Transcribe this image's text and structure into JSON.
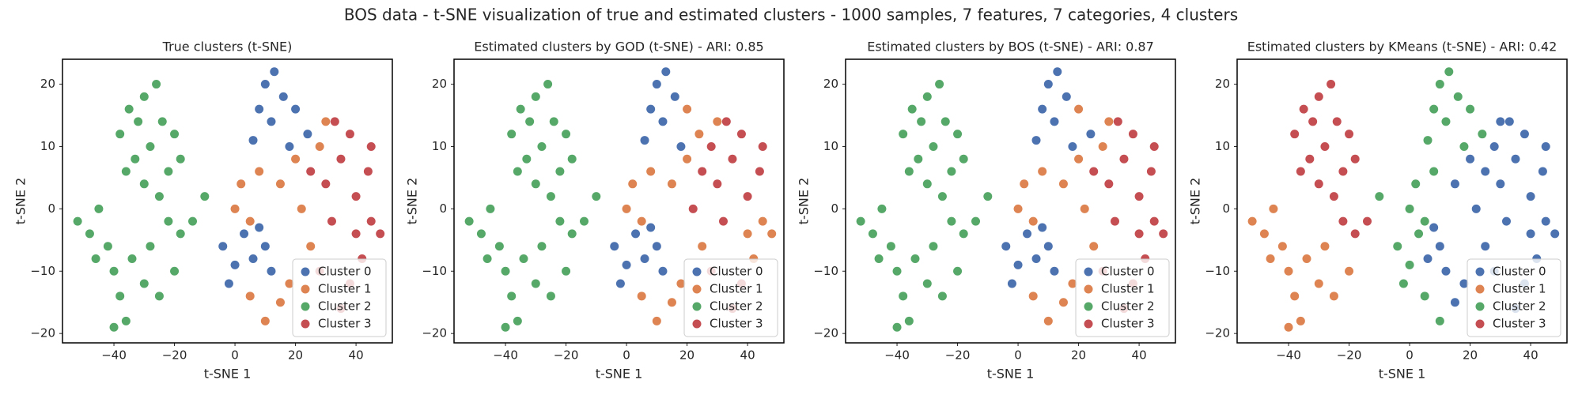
{
  "title": "BOS data - t-SNE visualization of true and estimated clusters - 1000 samples, 7 features, 7 categories, 4 clusters",
  "chart_data": [
    {
      "type": "scatter",
      "title": "True clusters (t-SNE)",
      "xlabel": "t-SNE 1",
      "ylabel": "t-SNE 2",
      "xlim": [
        -57,
        52
      ],
      "ylim": [
        -21.5,
        24
      ],
      "xticks": [
        {
          "value": -40,
          "label": "−40"
        },
        {
          "value": -20,
          "label": "−20"
        },
        0,
        20,
        40
      ],
      "yticks": [
        {
          "value": -20,
          "label": "−20"
        },
        {
          "value": -10,
          "label": "−10"
        },
        0,
        10,
        20
      ],
      "legend": "lower right",
      "series": [
        {
          "name": "Cluster 0",
          "color": "#4c72b0",
          "x": [
            10,
            13,
            16,
            8,
            20,
            12,
            24,
            18,
            6,
            -4,
            0,
            3,
            6,
            10,
            -2,
            12,
            8
          ],
          "y": [
            20,
            22,
            18,
            16,
            16,
            14,
            12,
            10,
            11,
            -6,
            -9,
            -4,
            -8,
            -6,
            -12,
            -10,
            -3
          ]
        },
        {
          "name": "Cluster 1",
          "color": "#dd8452",
          "x": [
            2,
            5,
            8,
            15,
            20,
            22,
            28,
            25,
            15,
            10,
            5,
            18,
            30,
            0
          ],
          "y": [
            4,
            -2,
            6,
            4,
            8,
            0,
            10,
            -6,
            -15,
            -18,
            -14,
            -12,
            14,
            0
          ]
        },
        {
          "name": "Cluster 2",
          "color": "#55a868",
          "x": [
            -38,
            -35,
            -30,
            -26,
            -24,
            -28,
            -33,
            -20,
            -22,
            -30,
            -36,
            -25,
            -18,
            -32,
            -52,
            -48,
            -45,
            -42,
            -40,
            -38,
            -36,
            -40,
            -34,
            -30,
            -28,
            -25,
            -20,
            -18,
            -14,
            -10,
            -22,
            -46
          ],
          "y": [
            12,
            16,
            18,
            20,
            14,
            10,
            8,
            12,
            6,
            4,
            6,
            2,
            8,
            14,
            -2,
            -4,
            0,
            -6,
            -10,
            -14,
            -18,
            -19,
            -8,
            -12,
            -6,
            -14,
            -10,
            -4,
            -2,
            2,
            -2,
            -8
          ]
        },
        {
          "name": "Cluster 3",
          "color": "#c44e52",
          "x": [
            30,
            35,
            40,
            45,
            48,
            42,
            38,
            32,
            28,
            35,
            44,
            38,
            25,
            33,
            45,
            40
          ],
          "y": [
            4,
            8,
            2,
            -2,
            -4,
            -8,
            -12,
            -2,
            -10,
            -16,
            6,
            12,
            6,
            14,
            10,
            -4
          ]
        }
      ]
    },
    {
      "type": "scatter",
      "title": "Estimated clusters by GOD (t-SNE) - ARI: 0.85",
      "xlabel": "t-SNE 1",
      "ylabel": "t-SNE 2",
      "xlim": [
        -57,
        52
      ],
      "ylim": [
        -21.5,
        24
      ],
      "xticks": [
        {
          "value": -40,
          "label": "−40"
        },
        {
          "value": -20,
          "label": "−20"
        },
        0,
        20,
        40
      ],
      "yticks": [
        {
          "value": -20,
          "label": "−20"
        },
        {
          "value": -10,
          "label": "−10"
        },
        0,
        10,
        20
      ],
      "legend": "lower right",
      "series": [
        {
          "name": "Cluster 0",
          "color": "#4c72b0",
          "x": [
            10,
            13,
            16,
            8,
            12,
            18,
            6,
            -4,
            0,
            3,
            6,
            10,
            -2,
            12,
            8
          ],
          "y": [
            20,
            22,
            18,
            16,
            14,
            10,
            11,
            -6,
            -9,
            -4,
            -8,
            -6,
            -12,
            -10,
            -3
          ]
        },
        {
          "name": "Cluster 1",
          "color": "#dd8452",
          "x": [
            2,
            5,
            8,
            15,
            20,
            25,
            15,
            10,
            5,
            18,
            30,
            0,
            20,
            24,
            40,
            45,
            48,
            42
          ],
          "y": [
            4,
            -2,
            6,
            4,
            8,
            -6,
            -15,
            -18,
            -14,
            -12,
            14,
            0,
            16,
            12,
            -4,
            -2,
            -4,
            -8
          ]
        },
        {
          "name": "Cluster 2",
          "color": "#55a868",
          "x": [
            -38,
            -35,
            -30,
            -26,
            -24,
            -28,
            -33,
            -20,
            -22,
            -30,
            -36,
            -25,
            -18,
            -32,
            -52,
            -48,
            -45,
            -42,
            -40,
            -38,
            -36,
            -40,
            -34,
            -30,
            -28,
            -25,
            -20,
            -18,
            -14,
            -10,
            -22,
            -46
          ],
          "y": [
            12,
            16,
            18,
            20,
            14,
            10,
            8,
            12,
            6,
            4,
            6,
            2,
            8,
            14,
            -2,
            -4,
            0,
            -6,
            -10,
            -14,
            -18,
            -19,
            -8,
            -12,
            -6,
            -14,
            -10,
            -4,
            -2,
            2,
            -2,
            -8
          ]
        },
        {
          "name": "Cluster 3",
          "color": "#c44e52",
          "x": [
            30,
            35,
            40,
            38,
            32,
            28,
            35,
            44,
            38,
            25,
            33,
            45,
            22,
            28
          ],
          "y": [
            4,
            8,
            2,
            -12,
            -2,
            -10,
            -16,
            6,
            12,
            6,
            14,
            10,
            0,
            10
          ]
        }
      ]
    },
    {
      "type": "scatter",
      "title": "Estimated clusters by BOS (t-SNE) - ARI: 0.87",
      "xlabel": "t-SNE 1",
      "ylabel": "t-SNE 2",
      "xlim": [
        -57,
        52
      ],
      "ylim": [
        -21.5,
        24
      ],
      "xticks": [
        {
          "value": -40,
          "label": "−40"
        },
        {
          "value": -20,
          "label": "−20"
        },
        0,
        20,
        40
      ],
      "yticks": [
        {
          "value": -20,
          "label": "−20"
        },
        {
          "value": -10,
          "label": "−10"
        },
        0,
        10,
        20
      ],
      "legend": "lower right",
      "series": [
        {
          "name": "Cluster 0",
          "color": "#4c72b0",
          "x": [
            10,
            13,
            16,
            8,
            12,
            24,
            18,
            6,
            -4,
            0,
            3,
            6,
            10,
            -2,
            12,
            8
          ],
          "y": [
            20,
            22,
            18,
            16,
            14,
            12,
            10,
            11,
            -6,
            -9,
            -4,
            -8,
            -6,
            -12,
            -10,
            -3
          ]
        },
        {
          "name": "Cluster 1",
          "color": "#dd8452",
          "x": [
            2,
            5,
            8,
            15,
            20,
            22,
            28,
            25,
            15,
            10,
            5,
            18,
            30,
            0,
            20
          ],
          "y": [
            4,
            -2,
            6,
            4,
            8,
            0,
            10,
            -6,
            -15,
            -18,
            -14,
            -12,
            14,
            0,
            16
          ]
        },
        {
          "name": "Cluster 2",
          "color": "#55a868",
          "x": [
            -38,
            -35,
            -30,
            -26,
            -24,
            -28,
            -33,
            -20,
            -22,
            -30,
            -36,
            -25,
            -18,
            -32,
            -52,
            -48,
            -45,
            -42,
            -40,
            -38,
            -36,
            -40,
            -34,
            -30,
            -28,
            -25,
            -20,
            -18,
            -14,
            -10,
            -22,
            -46
          ],
          "y": [
            12,
            16,
            18,
            20,
            14,
            10,
            8,
            12,
            6,
            4,
            6,
            2,
            8,
            14,
            -2,
            -4,
            0,
            -6,
            -10,
            -14,
            -18,
            -19,
            -8,
            -12,
            -6,
            -14,
            -10,
            -4,
            -2,
            2,
            -2,
            -8
          ]
        },
        {
          "name": "Cluster 3",
          "color": "#c44e52",
          "x": [
            30,
            35,
            40,
            45,
            48,
            42,
            38,
            32,
            28,
            35,
            44,
            38,
            25,
            33,
            45,
            40
          ],
          "y": [
            4,
            8,
            2,
            -2,
            -4,
            -8,
            -12,
            -2,
            -10,
            -16,
            6,
            12,
            6,
            14,
            10,
            -4
          ]
        }
      ]
    },
    {
      "type": "scatter",
      "title": "Estimated clusters by KMeans (t-SNE) - ARI: 0.42",
      "xlabel": "t-SNE 1",
      "ylabel": "t-SNE 2",
      "xlim": [
        -57,
        52
      ],
      "ylim": [
        -21.5,
        24
      ],
      "xticks": [
        {
          "value": -40,
          "label": "−40"
        },
        {
          "value": -20,
          "label": "−20"
        },
        0,
        20,
        40
      ],
      "yticks": [
        {
          "value": -20,
          "label": "−20"
        },
        {
          "value": -10,
          "label": "−10"
        },
        0,
        10,
        20
      ],
      "legend": "lower right",
      "series": [
        {
          "name": "Cluster 0",
          "color": "#4c72b0",
          "x": [
            30,
            35,
            40,
            45,
            48,
            42,
            38,
            32,
            28,
            35,
            44,
            38,
            25,
            33,
            45,
            40,
            22,
            28,
            25,
            30,
            20,
            15,
            18,
            15,
            12,
            10,
            8,
            6
          ],
          "y": [
            4,
            8,
            2,
            -2,
            -4,
            -8,
            -12,
            -2,
            -10,
            -16,
            6,
            12,
            6,
            14,
            10,
            -4,
            0,
            10,
            -6,
            14,
            8,
            4,
            -12,
            -15,
            -10,
            -6,
            -3,
            -8
          ]
        },
        {
          "name": "Cluster 1",
          "color": "#dd8452",
          "x": [
            -52,
            -48,
            -45,
            -42,
            -40,
            -38,
            -36,
            -40,
            -34,
            -30,
            -28,
            -25,
            -20,
            -46
          ],
          "y": [
            -2,
            -4,
            0,
            -6,
            -10,
            -14,
            -18,
            -19,
            -8,
            -12,
            -6,
            -14,
            -10,
            -8
          ]
        },
        {
          "name": "Cluster 2",
          "color": "#55a868",
          "x": [
            10,
            13,
            16,
            8,
            20,
            12,
            6,
            24,
            18,
            8,
            2,
            5,
            0,
            3,
            -4,
            0,
            -2,
            5,
            10,
            -10
          ],
          "y": [
            20,
            22,
            18,
            16,
            16,
            14,
            11,
            12,
            10,
            6,
            4,
            -2,
            0,
            -4,
            -6,
            -9,
            -12,
            -14,
            -18,
            2
          ]
        },
        {
          "name": "Cluster 3",
          "color": "#c44e52",
          "x": [
            -38,
            -35,
            -30,
            -26,
            -24,
            -28,
            -33,
            -20,
            -22,
            -30,
            -36,
            -25,
            -18,
            -32,
            -14,
            -18,
            -22
          ],
          "y": [
            12,
            16,
            18,
            20,
            14,
            10,
            8,
            12,
            6,
            4,
            6,
            2,
            8,
            14,
            -2,
            -4,
            -2
          ]
        }
      ]
    }
  ]
}
